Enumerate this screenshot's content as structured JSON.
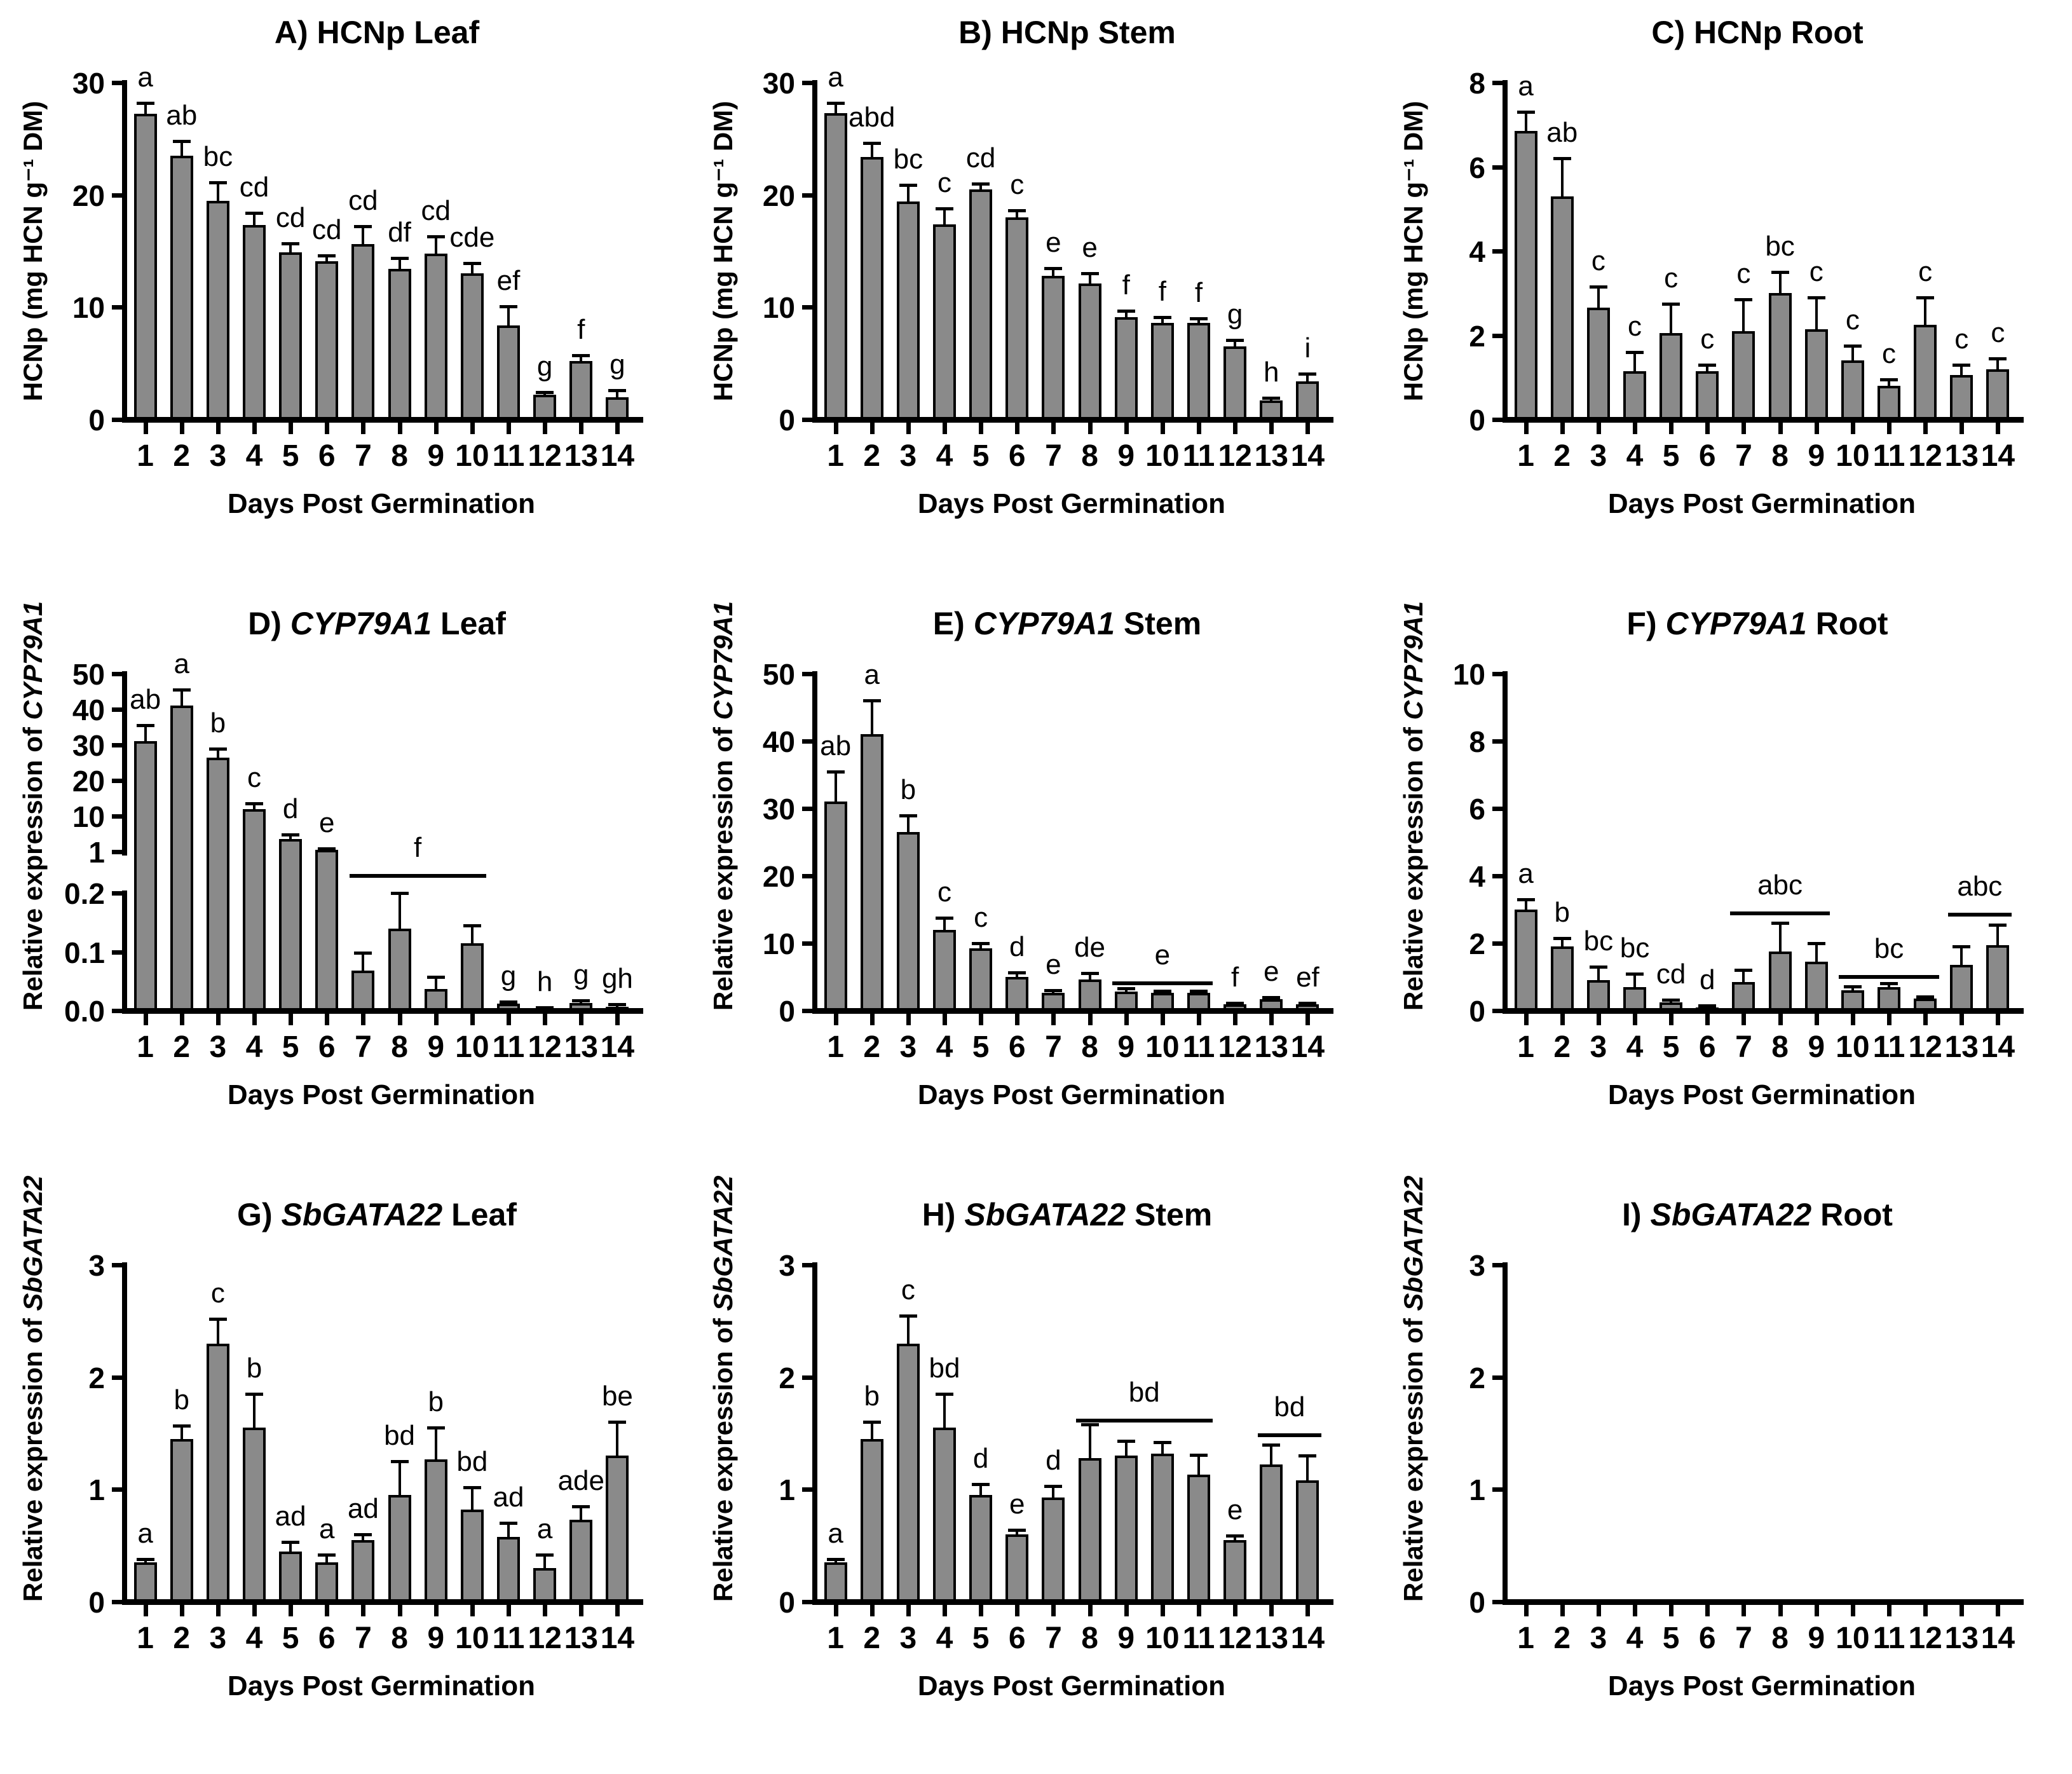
{
  "figure": {
    "xlabel": "Days Post Germination",
    "bar_color": "#8a8a8a",
    "bar_border_color": "#000000",
    "text_color": "#000000",
    "categories": [
      "1",
      "2",
      "3",
      "4",
      "5",
      "6",
      "7",
      "8",
      "9",
      "10",
      "11",
      "12",
      "13",
      "14"
    ]
  },
  "chart_data": [
    {
      "id": "A",
      "type": "bar",
      "title_parts": [
        {
          "text": "A) HCNp Leaf",
          "italic": false
        }
      ],
      "ylabel_parts": [
        {
          "text": "HCNp (mg HCN g⁻¹ DM)",
          "italic": false
        }
      ],
      "ylim": [
        0,
        30
      ],
      "yticks": [
        {
          "v": 0,
          "label": "0"
        },
        {
          "v": 10,
          "label": "10"
        },
        {
          "v": 20,
          "label": "20"
        },
        {
          "v": 30,
          "label": "30"
        }
      ],
      "values": [
        27.2,
        23.5,
        19.5,
        17.3,
        14.9,
        14.1,
        15.6,
        13.4,
        14.8,
        13.0,
        8.4,
        2.2,
        5.2,
        2.0
      ],
      "errors": [
        1.0,
        1.3,
        1.6,
        1.1,
        0.8,
        0.5,
        1.6,
        1.0,
        1.5,
        0.9,
        1.7,
        0.25,
        0.5,
        0.6
      ],
      "sig_letters": [
        "a",
        "ab",
        "bc",
        "cd",
        "cd",
        "cd",
        "cd",
        "df",
        "cd",
        "cde",
        "ef",
        "g",
        "f",
        "g"
      ],
      "group_lines": [],
      "broken": null
    },
    {
      "id": "B",
      "type": "bar",
      "title_parts": [
        {
          "text": "B) HCNp Stem",
          "italic": false
        }
      ],
      "ylabel_parts": [
        {
          "text": "HCNp (mg HCN g⁻¹ DM)",
          "italic": false
        }
      ],
      "ylim": [
        0,
        30
      ],
      "yticks": [
        {
          "v": 0,
          "label": "0"
        },
        {
          "v": 10,
          "label": "10"
        },
        {
          "v": 20,
          "label": "20"
        },
        {
          "v": 30,
          "label": "30"
        }
      ],
      "values": [
        27.3,
        23.4,
        19.4,
        17.4,
        20.5,
        18.0,
        12.8,
        12.1,
        9.1,
        8.6,
        8.6,
        6.5,
        1.7,
        3.4
      ],
      "errors": [
        0.9,
        1.2,
        1.5,
        1.4,
        0.5,
        0.6,
        0.7,
        0.9,
        0.6,
        0.5,
        0.4,
        0.6,
        0.25,
        0.7
      ],
      "sig_letters": [
        "a",
        "abd",
        "bc",
        "c",
        "cd",
        "c",
        "e",
        "e",
        "f",
        "f",
        "f",
        "g",
        "h",
        "i"
      ],
      "group_lines": [],
      "broken": null
    },
    {
      "id": "C",
      "type": "bar",
      "title_parts": [
        {
          "text": "C) HCNp Root",
          "italic": false
        }
      ],
      "ylabel_parts": [
        {
          "text": "HCNp (mg HCN g⁻¹ DM)",
          "italic": false
        }
      ],
      "ylim": [
        0,
        8
      ],
      "yticks": [
        {
          "v": 0,
          "label": "0"
        },
        {
          "v": 2,
          "label": "2"
        },
        {
          "v": 4,
          "label": "4"
        },
        {
          "v": 6,
          "label": "6"
        },
        {
          "v": 8,
          "label": "8"
        }
      ],
      "values": [
        6.85,
        5.3,
        2.65,
        1.15,
        2.05,
        1.15,
        2.1,
        3.0,
        2.15,
        1.4,
        0.8,
        2.25,
        1.05,
        1.2
      ],
      "errors": [
        0.45,
        0.9,
        0.5,
        0.45,
        0.7,
        0.15,
        0.75,
        0.5,
        0.75,
        0.35,
        0.15,
        0.65,
        0.25,
        0.25
      ],
      "sig_letters": [
        "a",
        "ab",
        "c",
        "c",
        "c",
        "c",
        "c",
        "bc",
        "c",
        "c",
        "c",
        "c",
        "c",
        "c"
      ],
      "group_lines": [],
      "broken": null
    },
    {
      "id": "D",
      "type": "bar",
      "title_parts": [
        {
          "text": "D) ",
          "italic": false
        },
        {
          "text": "CYP79A1",
          "italic": true
        },
        {
          "text": " Leaf",
          "italic": false
        }
      ],
      "ylabel_parts": [
        {
          "text": "Relative expression of ",
          "italic": false
        },
        {
          "text": "CYP79A1",
          "italic": true
        }
      ],
      "ylim": [
        0,
        50
      ],
      "yticks": [],
      "values": [
        31,
        41,
        26.5,
        12,
        4.2,
        1.5,
        0.068,
        0.14,
        0.037,
        0.115,
        0.012,
        0.003,
        0.013,
        0.007
      ],
      "errors": [
        4.5,
        4.5,
        2.5,
        1.5,
        1.2,
        0.3,
        0.03,
        0.062,
        0.02,
        0.03,
        0.003,
        0.002,
        0.004,
        0.004
      ],
      "sig_letters": [
        "ab",
        "a",
        "b",
        "c",
        "d",
        "e",
        "",
        "",
        "",
        "",
        "g",
        "h",
        "g",
        "gh"
      ],
      "group_lines": [
        {
          "from": 7,
          "to": 10,
          "label": "f",
          "y": null
        }
      ],
      "broken": {
        "upper_tick_labels": [
          "1",
          "10",
          "20",
          "30",
          "40",
          "50"
        ],
        "upper_min": 1,
        "upper_mid": 10,
        "upper_max": 50,
        "lower_max": 0.2,
        "lower_ticks": [
          {
            "v": 0,
            "label": "0.0"
          },
          {
            "v": 0.1,
            "label": "0.1"
          },
          {
            "v": 0.2,
            "label": "0.2"
          }
        ]
      }
    },
    {
      "id": "E",
      "type": "bar",
      "title_parts": [
        {
          "text": "E) ",
          "italic": false
        },
        {
          "text": "CYP79A1",
          "italic": true
        },
        {
          "text": " Stem",
          "italic": false
        }
      ],
      "ylabel_parts": [
        {
          "text": "Relative expression of ",
          "italic": false
        },
        {
          "text": "CYP79A1",
          "italic": true
        }
      ],
      "ylim": [
        0,
        50
      ],
      "yticks": [
        {
          "v": 0,
          "label": "0"
        },
        {
          "v": 10,
          "label": "10"
        },
        {
          "v": 20,
          "label": "20"
        },
        {
          "v": 30,
          "label": "30"
        },
        {
          "v": 40,
          "label": "40"
        },
        {
          "v": 50,
          "label": "50"
        }
      ],
      "values": [
        31,
        41,
        26.5,
        12,
        9.2,
        5.0,
        2.6,
        4.6,
        2.8,
        2.6,
        2.6,
        0.9,
        1.7,
        0.9
      ],
      "errors": [
        4.5,
        5.0,
        2.5,
        1.8,
        0.8,
        0.7,
        0.4,
        1.0,
        0.5,
        0.3,
        0.3,
        0.2,
        0.3,
        0.25
      ],
      "sig_letters": [
        "ab",
        "a",
        "b",
        "c",
        "c",
        "d",
        "e",
        "de",
        "",
        "",
        "",
        "f",
        "e",
        "ef"
      ],
      "group_lines": [
        {
          "from": 9,
          "to": 11,
          "label": "e",
          "y": 4.3
        }
      ],
      "broken": null
    },
    {
      "id": "F",
      "type": "bar",
      "title_parts": [
        {
          "text": "F) ",
          "italic": false
        },
        {
          "text": "CYP79A1",
          "italic": true
        },
        {
          "text": " Root",
          "italic": false
        }
      ],
      "ylabel_parts": [
        {
          "text": "Relative expression of ",
          "italic": false
        },
        {
          "text": "CYP79A1",
          "italic": true
        }
      ],
      "ylim": [
        0,
        10
      ],
      "yticks": [
        {
          "v": 0,
          "label": "0"
        },
        {
          "v": 2,
          "label": "2"
        },
        {
          "v": 4,
          "label": "4"
        },
        {
          "v": 6,
          "label": "6"
        },
        {
          "v": 8,
          "label": "8"
        },
        {
          "v": 10,
          "label": "10"
        }
      ],
      "values": [
        3.0,
        1.9,
        0.9,
        0.7,
        0.25,
        0.1,
        0.85,
        1.75,
        1.45,
        0.6,
        0.7,
        0.35,
        1.35,
        1.95
      ],
      "errors": [
        0.3,
        0.25,
        0.4,
        0.4,
        0.07,
        0.05,
        0.35,
        0.85,
        0.55,
        0.12,
        0.12,
        0.07,
        0.55,
        0.6
      ],
      "sig_letters": [
        "a",
        "b",
        "bc",
        "bc",
        "cd",
        "d",
        "",
        "",
        "",
        "",
        "",
        "",
        "",
        ""
      ],
      "group_lines": [
        {
          "from": 7,
          "to": 9,
          "label": "abc",
          "y": 2.95
        },
        {
          "from": 10,
          "to": 12,
          "label": "bc",
          "y": 1.05
        },
        {
          "from": 13,
          "to": 14,
          "label": "abc",
          "y": 2.9
        }
      ],
      "broken": null
    },
    {
      "id": "G",
      "type": "bar",
      "title_parts": [
        {
          "text": "G) ",
          "italic": false
        },
        {
          "text": "SbGATA22",
          "italic": true
        },
        {
          "text": " Leaf",
          "italic": false
        }
      ],
      "ylabel_parts": [
        {
          "text": "Relative expression of ",
          "italic": false
        },
        {
          "text": "SbGATA22",
          "italic": true
        }
      ],
      "ylim": [
        0,
        3
      ],
      "yticks": [
        {
          "v": 0,
          "label": "0"
        },
        {
          "v": 1,
          "label": "1"
        },
        {
          "v": 2,
          "label": "2"
        },
        {
          "v": 3,
          "label": "3"
        }
      ],
      "values": [
        0.35,
        1.45,
        2.3,
        1.55,
        0.45,
        0.35,
        0.55,
        0.95,
        1.27,
        0.82,
        0.58,
        0.3,
        0.73,
        1.3
      ],
      "errors": [
        0.03,
        0.12,
        0.22,
        0.3,
        0.08,
        0.07,
        0.05,
        0.3,
        0.28,
        0.2,
        0.12,
        0.12,
        0.12,
        0.3
      ],
      "sig_letters": [
        "a",
        "b",
        "c",
        "b",
        "ad",
        "a",
        "ad",
        "bd",
        "b",
        "bd",
        "ad",
        "a",
        "ade",
        "be"
      ],
      "group_lines": [],
      "broken": null
    },
    {
      "id": "H",
      "type": "bar",
      "title_parts": [
        {
          "text": "H) ",
          "italic": false
        },
        {
          "text": "SbGATA22",
          "italic": true
        },
        {
          "text": " Stem",
          "italic": false
        }
      ],
      "ylabel_parts": [
        {
          "text": "Relative expression of ",
          "italic": false
        },
        {
          "text": "SbGATA22",
          "italic": true
        }
      ],
      "ylim": [
        0,
        3
      ],
      "yticks": [
        {
          "v": 0,
          "label": "0"
        },
        {
          "v": 1,
          "label": "1"
        },
        {
          "v": 2,
          "label": "2"
        },
        {
          "v": 3,
          "label": "3"
        }
      ],
      "values": [
        0.35,
        1.45,
        2.3,
        1.55,
        0.95,
        0.6,
        0.93,
        1.28,
        1.3,
        1.32,
        1.13,
        0.55,
        1.22,
        1.08
      ],
      "errors": [
        0.03,
        0.15,
        0.25,
        0.3,
        0.1,
        0.04,
        0.1,
        0.3,
        0.13,
        0.1,
        0.18,
        0.04,
        0.18,
        0.22
      ],
      "sig_letters": [
        "a",
        "b",
        "c",
        "bd",
        "d",
        "e",
        "d",
        "",
        "",
        "",
        "",
        "e",
        "",
        ""
      ],
      "group_lines": [
        {
          "from": 8,
          "to": 11,
          "label": "bd",
          "y": 1.63
        },
        {
          "from": 13,
          "to": 14,
          "label": "bd",
          "y": 1.5
        }
      ],
      "broken": null
    },
    {
      "id": "I",
      "type": "bar",
      "title_parts": [
        {
          "text": "I) ",
          "italic": false
        },
        {
          "text": "SbGATA22",
          "italic": true
        },
        {
          "text": " Root",
          "italic": false
        }
      ],
      "ylabel_parts": [
        {
          "text": "Relative expression of ",
          "italic": false
        },
        {
          "text": "SbGATA22",
          "italic": true
        }
      ],
      "ylim": [
        0,
        3
      ],
      "yticks": [
        {
          "v": 0,
          "label": "0"
        },
        {
          "v": 1,
          "label": "1"
        },
        {
          "v": 2,
          "label": "2"
        },
        {
          "v": 3,
          "label": "3"
        }
      ],
      "values": [
        0,
        0,
        0,
        0,
        0,
        0,
        0,
        0,
        0,
        0,
        0,
        0,
        0,
        0.02
      ],
      "errors": [
        0,
        0,
        0,
        0,
        0,
        0,
        0,
        0,
        0,
        0,
        0,
        0,
        0,
        0
      ],
      "sig_letters": [
        "",
        "",
        "",
        "",
        "",
        "",
        "",
        "",
        "",
        "",
        "",
        "",
        "",
        ""
      ],
      "group_lines": [],
      "broken": null
    }
  ]
}
